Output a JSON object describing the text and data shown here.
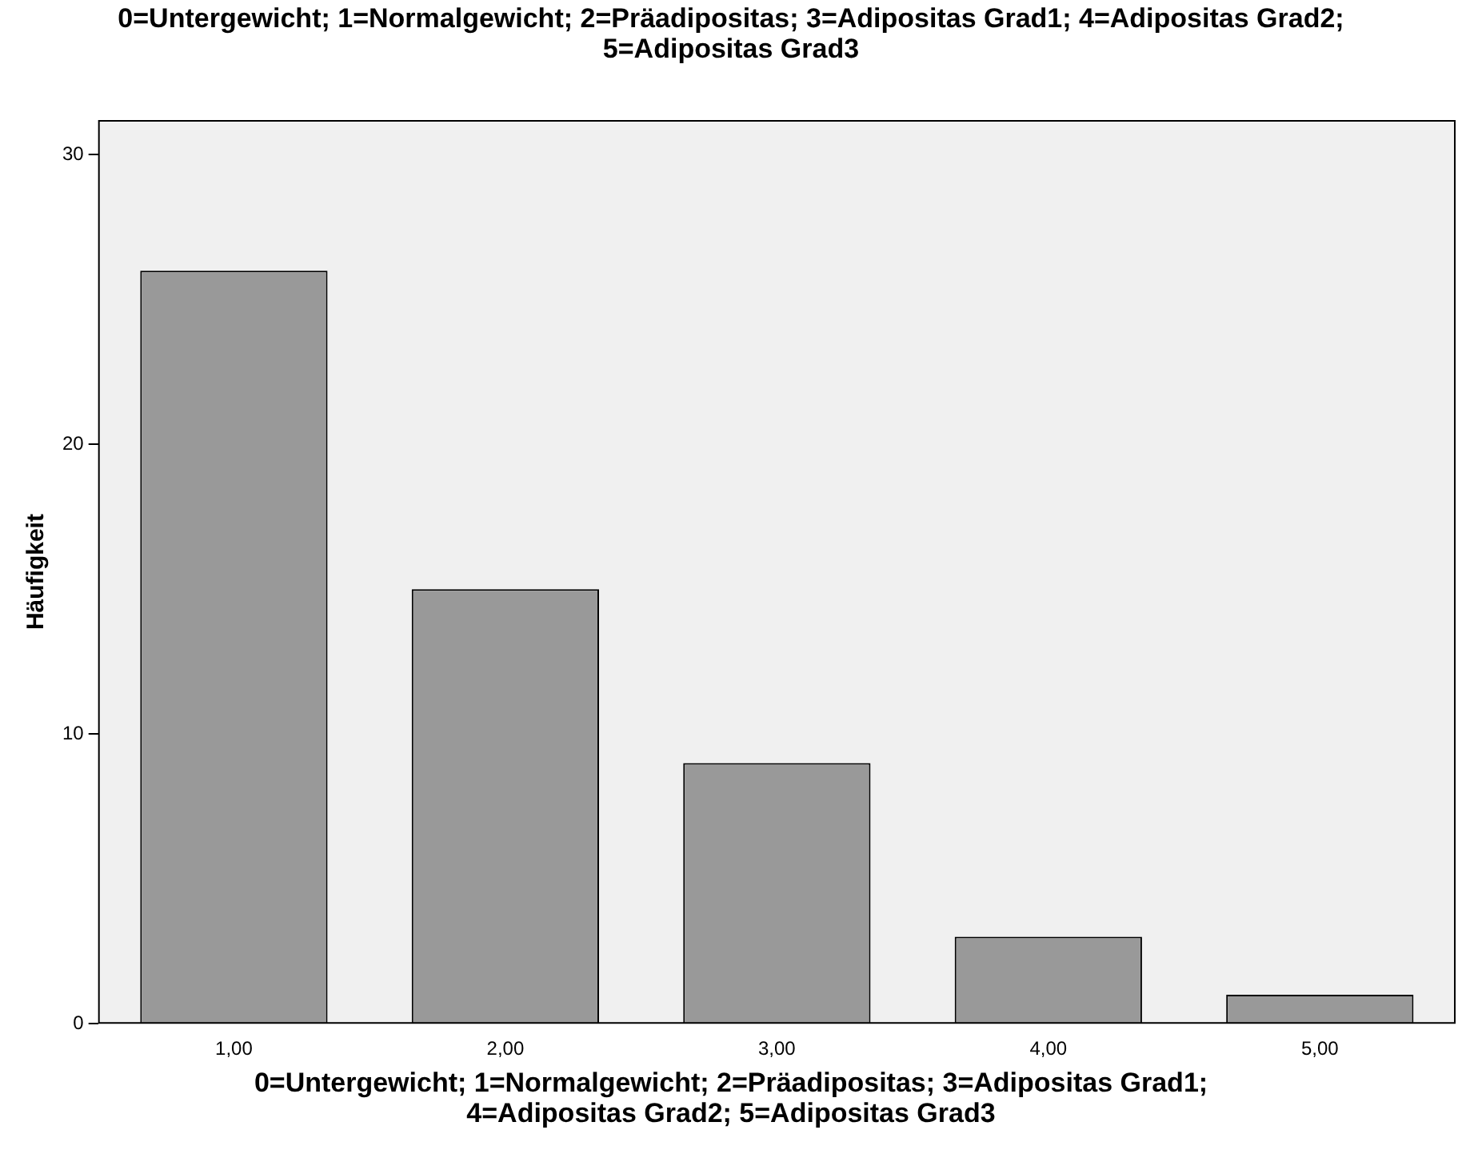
{
  "chart_data": {
    "type": "bar",
    "title": "0=Untergewicht; 1=Normalgewicht; 2=Präadipositas; 3=Adipositas Grad1; 4=Adipositas Grad2; 5=Adipositas Grad3",
    "xlabel": "0=Untergewicht; 1=Normalgewicht; 2=Präadipositas; 3=Adipositas Grad1; 4=Adipositas Grad2; 5=Adipositas Grad3",
    "ylabel": "Häufigkeit",
    "categories": [
      "1,00",
      "2,00",
      "3,00",
      "4,00",
      "5,00"
    ],
    "values": [
      26,
      15,
      9,
      3,
      1
    ],
    "color": "#999999",
    "ylim": [
      0,
      31.2
    ],
    "yticks": [
      0,
      10,
      20,
      30
    ],
    "grid": false,
    "legend": false
  }
}
